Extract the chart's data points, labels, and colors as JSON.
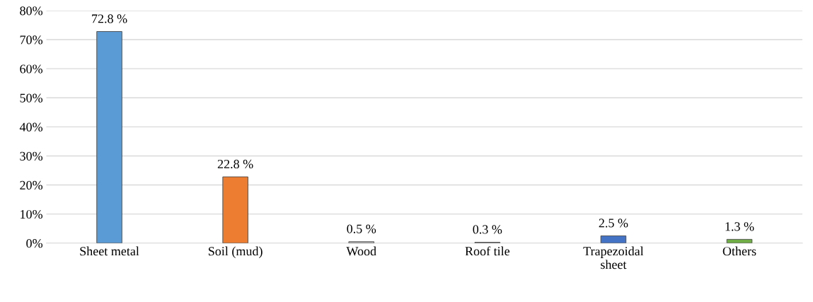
{
  "chart_data": {
    "type": "bar",
    "categories": [
      "Sheet metal",
      "Soil (mud)",
      "Wood",
      "Roof tile",
      "Trapezoidal\nsheet",
      "Others"
    ],
    "values": [
      72.8,
      22.8,
      0.5,
      0.3,
      2.5,
      1.3
    ],
    "colors": [
      "#5b9bd5",
      "#ed7d31",
      "#bfbfbf",
      "#a5a5a5",
      "#4472c4",
      "#70ad47"
    ],
    "value_labels": [
      "72.8 %",
      "22.8 %",
      "0.5 %",
      "0.3 %",
      "2.5 %",
      "1.3 %"
    ],
    "ylim": [
      0,
      80
    ],
    "yticks": [
      {
        "value": 0,
        "label": "0%"
      },
      {
        "value": 10,
        "label": "10%"
      },
      {
        "value": 20,
        "label": "20%"
      },
      {
        "value": 30,
        "label": "30%"
      },
      {
        "value": 40,
        "label": "40%"
      },
      {
        "value": 50,
        "label": "50%"
      },
      {
        "value": 60,
        "label": "60%"
      },
      {
        "value": 70,
        "label": "70%"
      },
      {
        "value": 80,
        "label": "80%"
      }
    ],
    "grid": "y",
    "legend": false
  }
}
